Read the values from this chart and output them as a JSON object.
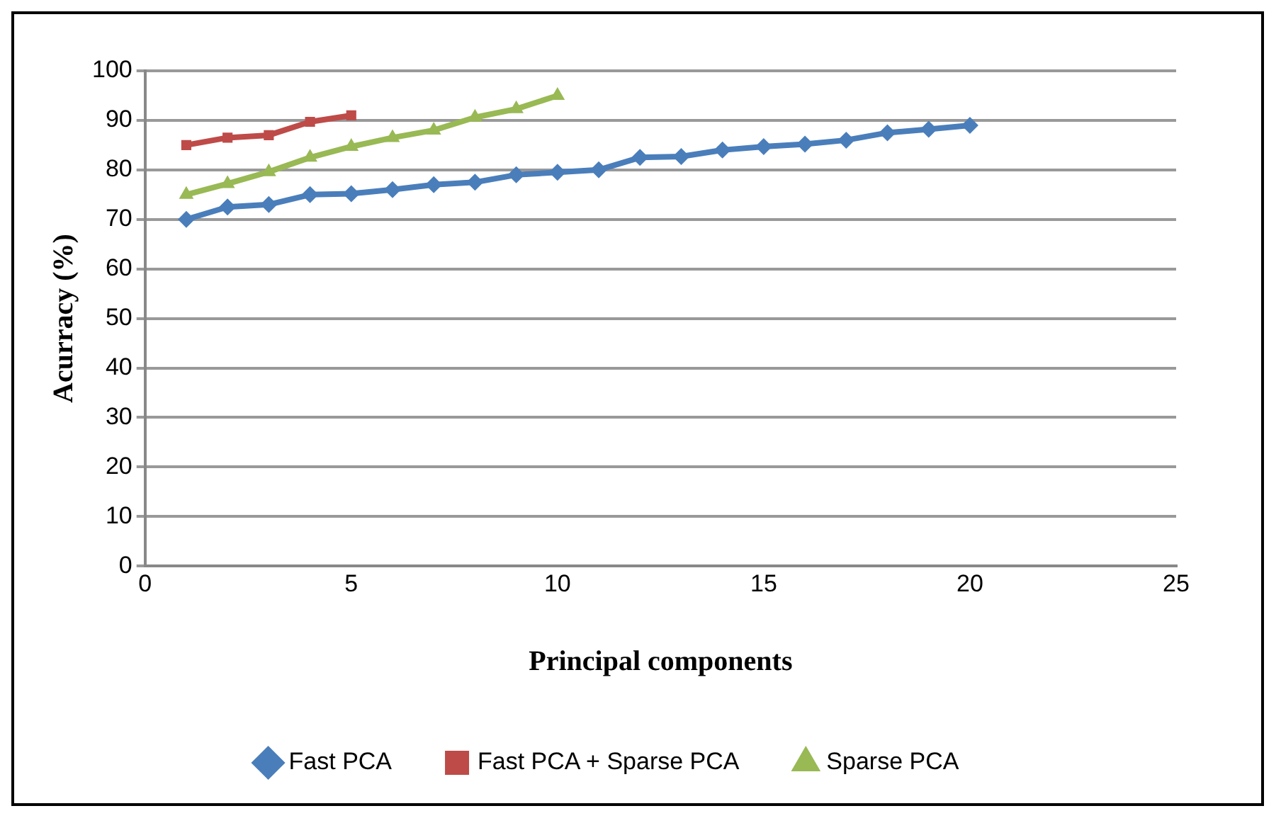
{
  "chart_data": {
    "type": "line",
    "xlabel": "Principal components",
    "ylabel": "Acurracy (%)",
    "xlim": [
      0,
      25
    ],
    "xticks": [
      0,
      5,
      10,
      15,
      20,
      25
    ],
    "ylim": [
      0,
      100
    ],
    "yticks": [
      0,
      10,
      20,
      30,
      40,
      50,
      60,
      70,
      80,
      90,
      100
    ],
    "grid": "y",
    "legend": "bottom",
    "series": [
      {
        "name": "Fast PCA",
        "color": "#4a7ebb",
        "marker": "diamond",
        "x": [
          1,
          2,
          3,
          4,
          5,
          6,
          7,
          8,
          9,
          10,
          11,
          12,
          13,
          14,
          15,
          16,
          17,
          18,
          19,
          20
        ],
        "values": [
          70,
          72.5,
          73,
          75,
          75.2,
          76,
          77,
          77.5,
          79,
          79.5,
          80,
          82.5,
          82.7,
          84,
          84.7,
          85.2,
          86,
          87.5,
          88.2,
          89
        ]
      },
      {
        "name": "Fast PCA + Sparse PCA",
        "color": "#be4b48",
        "marker": "square",
        "x": [
          1,
          2,
          3,
          4,
          5
        ],
        "values": [
          85,
          86.5,
          87,
          89.7,
          91
        ]
      },
      {
        "name": "Sparse PCA",
        "color": "#98b954",
        "marker": "triangle",
        "x": [
          1,
          2,
          3,
          4,
          5,
          6,
          7,
          8,
          9,
          10
        ],
        "values": [
          75,
          77.2,
          79.6,
          82.5,
          84.7,
          86.5,
          88,
          90.6,
          92.3,
          95
        ]
      }
    ]
  }
}
